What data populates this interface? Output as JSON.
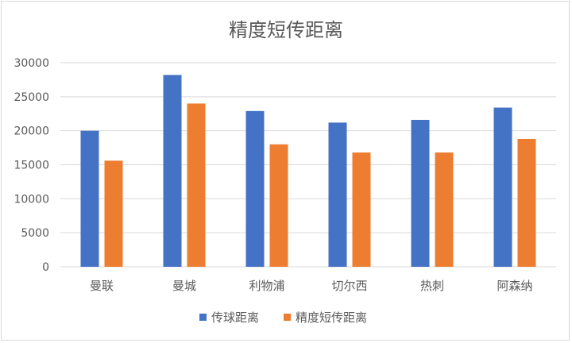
{
  "chart_data": {
    "type": "bar",
    "title": "精度短传距离",
    "categories": [
      "曼联",
      "曼城",
      "利物浦",
      "切尔西",
      "热刺",
      "阿森纳"
    ],
    "series": [
      {
        "name": "传球距离",
        "color": "#4472c4",
        "values": [
          20000,
          28200,
          22900,
          21200,
          21600,
          23400
        ]
      },
      {
        "name": "精度短传距离",
        "color": "#ed7d31",
        "values": [
          15600,
          24000,
          18000,
          16800,
          16800,
          18800
        ]
      }
    ],
    "ylim": [
      0,
      30000
    ],
    "yticks": [
      "0",
      "5000",
      "10000",
      "15000",
      "20000",
      "25000",
      "30000"
    ],
    "grid": true,
    "legend_position": "bottom",
    "gridline_color": "#d9d9d9",
    "text_color": "#595959"
  }
}
